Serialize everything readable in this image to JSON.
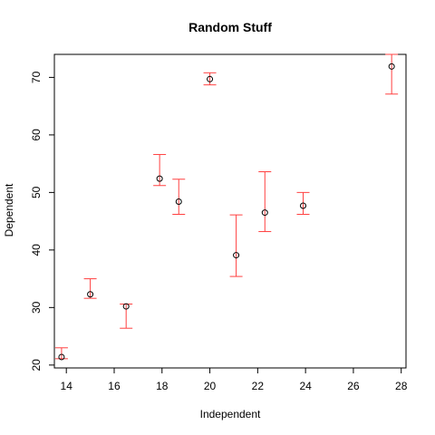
{
  "chart_data": {
    "type": "scatter",
    "title": "Random Stuff",
    "xlabel": "Independent",
    "ylabel": "Dependent",
    "xlim": [
      13.5,
      28.2
    ],
    "ylim": [
      19.5,
      74
    ],
    "x_ticks": [
      14,
      16,
      18,
      20,
      22,
      24,
      26,
      28
    ],
    "y_ticks": [
      20,
      30,
      40,
      50,
      60,
      70
    ],
    "grid": false,
    "point_color": "#000000",
    "errorbar_color": "#ff4040",
    "points": [
      {
        "x": 13.8,
        "y": 21.4,
        "ylow": 21.1,
        "yhigh": 23.0
      },
      {
        "x": 15.0,
        "y": 32.3,
        "ylow": 31.6,
        "yhigh": 35.0
      },
      {
        "x": 16.5,
        "y": 30.2,
        "ylow": 26.4,
        "yhigh": 30.6
      },
      {
        "x": 17.9,
        "y": 52.4,
        "ylow": 51.2,
        "yhigh": 56.6
      },
      {
        "x": 18.7,
        "y": 48.4,
        "ylow": 46.2,
        "yhigh": 52.3
      },
      {
        "x": 20.0,
        "y": 69.7,
        "ylow": 68.7,
        "yhigh": 70.8
      },
      {
        "x": 21.1,
        "y": 39.1,
        "ylow": 35.4,
        "yhigh": 46.1
      },
      {
        "x": 22.3,
        "y": 46.5,
        "ylow": 43.2,
        "yhigh": 53.6
      },
      {
        "x": 23.9,
        "y": 47.7,
        "ylow": 46.2,
        "yhigh": 50.0
      },
      {
        "x": 27.6,
        "y": 71.9,
        "ylow": 67.1,
        "yhigh": 74.5
      }
    ]
  }
}
